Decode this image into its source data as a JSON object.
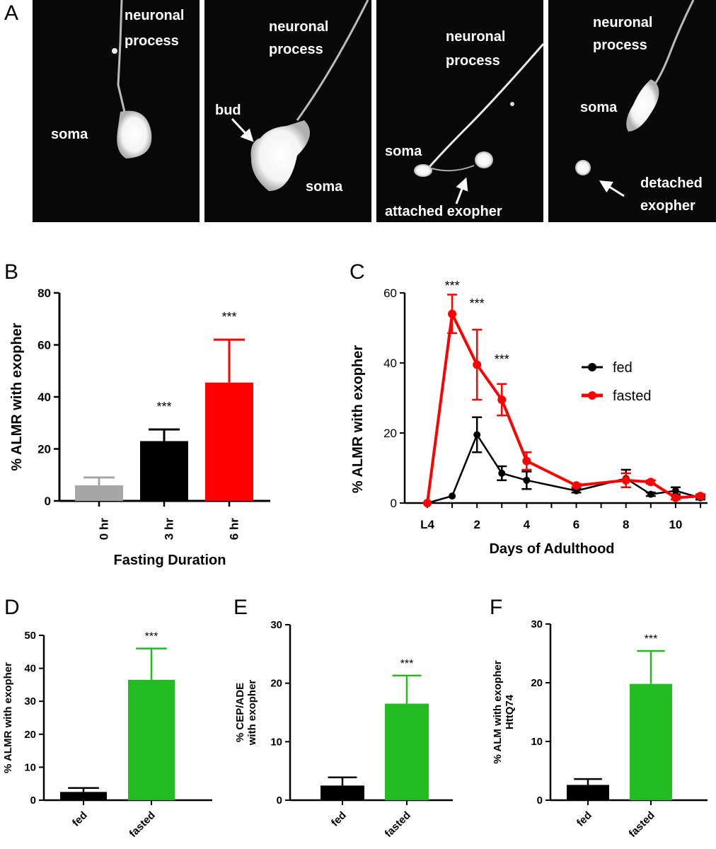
{
  "panel_labels": {
    "a": "A",
    "b": "B",
    "c": "C",
    "d": "D",
    "e": "E",
    "f": "F"
  },
  "micrographs": [
    {
      "labels": [
        "neuronal",
        "process",
        "soma"
      ]
    },
    {
      "labels": [
        "neuronal",
        "process",
        "bud",
        "soma"
      ]
    },
    {
      "labels": [
        "neuronal",
        "process",
        "soma",
        "attached exopher"
      ]
    },
    {
      "labels": [
        "neuronal",
        "process",
        "soma",
        "detached",
        "exopher"
      ]
    }
  ],
  "chart_data": [
    {
      "panel": "B",
      "type": "bar",
      "title": "",
      "xlabel": "Fasting Duration",
      "ylabel": "%  ALMR with exopher",
      "ylim": [
        0,
        80
      ],
      "yticks": [
        "0",
        "20",
        "40",
        "60",
        "80"
      ],
      "categories": [
        "0 hr",
        "3 hr",
        "6 hr"
      ],
      "values": [
        6,
        23,
        45.5
      ],
      "errors": [
        3,
        4.5,
        16.5
      ],
      "colors": [
        "#a6a6a6",
        "#000000",
        "#ff0000"
      ],
      "significance": [
        "",
        "***",
        "***"
      ]
    },
    {
      "panel": "C",
      "type": "line",
      "xlabel": "Days of Adulthood",
      "ylabel": "%  ALMR with exopher",
      "ylim": [
        0,
        60
      ],
      "xlim": [
        0,
        11
      ],
      "yticks": [
        "0",
        "20",
        "40",
        "60"
      ],
      "xticks": [
        {
          "x": 0,
          "label": "L4"
        },
        {
          "x": 2,
          "label": "2"
        },
        {
          "x": 4,
          "label": "4"
        },
        {
          "x": 6,
          "label": "6"
        },
        {
          "x": 8,
          "label": "8"
        },
        {
          "x": 10,
          "label": "10"
        }
      ],
      "series": [
        {
          "name": "fed",
          "color": "#000000",
          "x": [
            0,
            1,
            2,
            3,
            4,
            6,
            8,
            9,
            10,
            11
          ],
          "values": [
            0,
            2,
            19.5,
            8.5,
            6.5,
            3.5,
            7,
            2.5,
            3.5,
            1.5
          ],
          "errors": [
            0,
            0,
            5,
            2,
            2.5,
            0.5,
            2.5,
            0.5,
            1,
            0.5
          ]
        },
        {
          "name": "fasted",
          "color": "#ff0000",
          "x": [
            0,
            1,
            2,
            3,
            4,
            6,
            8,
            9,
            10,
            11
          ],
          "values": [
            0,
            54,
            39.5,
            29.5,
            12,
            5,
            6.5,
            6,
            1.5,
            2
          ],
          "errors": [
            0,
            5.5,
            10,
            4.5,
            2.5,
            0.5,
            2,
            0.5,
            0.5,
            0.5
          ]
        }
      ],
      "annotations": [
        {
          "x": 1,
          "y": 60,
          "text": "***"
        },
        {
          "x": 2,
          "y": 55,
          "text": "***"
        },
        {
          "x": 3,
          "y": 39,
          "text": "***"
        }
      ]
    },
    {
      "panel": "D",
      "type": "bar",
      "ylabel": "% ALMR with exopher",
      "ylim": [
        0,
        50
      ],
      "yticks": [
        "0",
        "10",
        "20",
        "30",
        "40",
        "50"
      ],
      "categories": [
        "fed",
        "fasted"
      ],
      "values": [
        2.5,
        36.5
      ],
      "errors": [
        1.2,
        9.5
      ],
      "colors": [
        "#000000",
        "#22bb22"
      ],
      "significance": [
        "",
        "***"
      ]
    },
    {
      "panel": "E",
      "type": "bar",
      "ylabel": "% CEP/ADE\nwith exopher",
      "ylim": [
        0,
        30
      ],
      "yticks": [
        "0",
        "10",
        "20",
        "30"
      ],
      "categories": [
        "fed",
        "fasted"
      ],
      "values": [
        2.5,
        16.5
      ],
      "errors": [
        1.4,
        4.8
      ],
      "colors": [
        "#000000",
        "#22bb22"
      ],
      "significance": [
        "",
        "***"
      ]
    },
    {
      "panel": "F",
      "type": "bar",
      "ylabel": "% ALM with exopher\nHttQ74",
      "ylim": [
        0,
        30
      ],
      "yticks": [
        "0",
        "10",
        "20",
        "30"
      ],
      "categories": [
        "fed",
        "fasted"
      ],
      "values": [
        2.6,
        19.8
      ],
      "errors": [
        1,
        5.6
      ],
      "colors": [
        "#000000",
        "#22bb22"
      ],
      "significance": [
        "",
        "***"
      ]
    }
  ]
}
